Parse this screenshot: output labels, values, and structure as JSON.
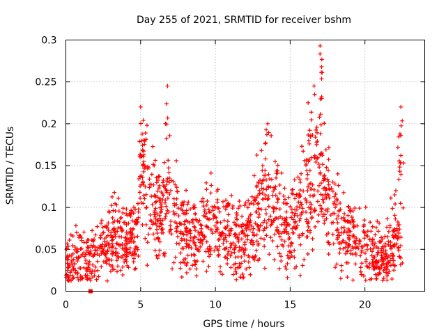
{
  "chart_data": {
    "type": "scatter",
    "title": "Day 255 of 2021, SRMTID for receiver bshm",
    "xlabel": "GPS time / hours",
    "ylabel": "SRMTID / TECUs",
    "xlim": [
      0,
      24
    ],
    "ylim": [
      0,
      0.3
    ],
    "xticks": [
      0,
      5,
      10,
      15,
      20
    ],
    "yticks": [
      0,
      0.05,
      0.1,
      0.15,
      0.2,
      0.25,
      0.3
    ],
    "xtick_labels": [
      "0",
      "5",
      "10",
      "15",
      "20"
    ],
    "ytick_labels": [
      "0",
      "0.05",
      "0.1",
      "0.15",
      "0.2",
      "0.25",
      "0.3"
    ],
    "grid": true,
    "marker": "+",
    "color": "#ff0000",
    "series": [
      {
        "name": "SRMTID",
        "approx_profile": {
          "x": [
            0,
            0.5,
            1,
            1.5,
            2,
            2.5,
            3,
            3.5,
            4,
            4.5,
            4.8,
            5,
            5.3,
            5.6,
            6,
            6.5,
            6.8,
            7,
            7.5,
            8,
            9,
            10,
            10.5,
            11,
            11.5,
            12,
            12.5,
            13,
            13.5,
            14,
            14.5,
            15,
            15.5,
            16,
            16.5,
            17,
            17.3,
            17.7,
            18,
            18.5,
            19,
            19.5,
            20,
            20.5,
            21,
            21.5,
            22,
            22.5
          ],
          "y": [
            0.03,
            0.035,
            0.04,
            0.035,
            0.04,
            0.05,
            0.06,
            0.065,
            0.055,
            0.06,
            0.07,
            0.13,
            0.15,
            0.12,
            0.09,
            0.1,
            0.13,
            0.09,
            0.085,
            0.065,
            0.07,
            0.08,
            0.075,
            0.065,
            0.055,
            0.07,
            0.08,
            0.1,
            0.11,
            0.1,
            0.08,
            0.07,
            0.09,
            0.11,
            0.13,
            0.15,
            0.12,
            0.1,
            0.09,
            0.07,
            0.06,
            0.06,
            0.055,
            0.05,
            0.04,
            0.045,
            0.07,
            0.05
          ]
        },
        "peaks": [
          {
            "x": 5.0,
            "y": 0.22
          },
          {
            "x": 6.8,
            "y": 0.245
          },
          {
            "x": 13.5,
            "y": 0.2
          },
          {
            "x": 16.2,
            "y": 0.225
          },
          {
            "x": 16.6,
            "y": 0.245
          },
          {
            "x": 17.0,
            "y": 0.293
          },
          {
            "x": 17.1,
            "y": 0.268
          },
          {
            "x": 22.4,
            "y": 0.22
          },
          {
            "x": 22.4,
            "y": 0.186
          },
          {
            "x": 22.4,
            "y": 0.162
          }
        ],
        "square_marker": {
          "x": 1.65,
          "y": 0.0
        }
      }
    ]
  }
}
